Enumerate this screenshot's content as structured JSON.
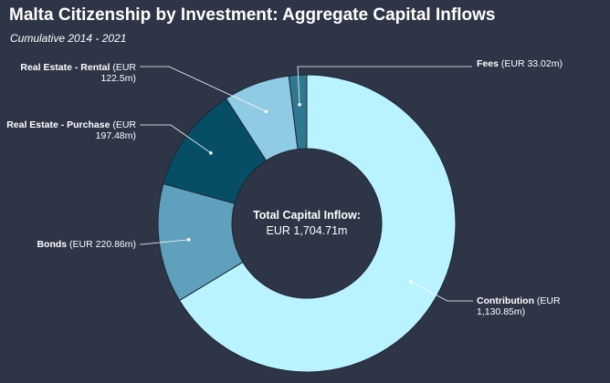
{
  "title": "Malta Citizenship by Investment: Aggregate Capital Inflows",
  "subtitle": "Cumulative 2014 - 2021",
  "chart_data": {
    "type": "pie",
    "donut": true,
    "title": "Malta Citizenship by Investment: Aggregate Capital Inflows",
    "subtitle": "Cumulative 2014 - 2021",
    "center_label": {
      "title": "Total Capital Inflow:",
      "value": "EUR 1,704.71m"
    },
    "slices": [
      {
        "name": "Contribution",
        "value": 1130.85,
        "label_lines": [
          "Contribution (EUR",
          "1,130.85m)"
        ],
        "color": "#b9f3ff"
      },
      {
        "name": "Bonds",
        "value": 220.86,
        "label_lines": [
          "Bonds (EUR 220.86m)"
        ],
        "color": "#5fa0bd"
      },
      {
        "name": "Real Estate - Purchase",
        "value": 197.48,
        "label_lines": [
          "Real Estate - Purchase (EUR",
          "197.48m)"
        ],
        "color": "#054e66"
      },
      {
        "name": "Real Estate - Rental",
        "value": 122.5,
        "label_lines": [
          "Real Estate - Rental (EUR",
          "122.5m)"
        ],
        "color": "#8fcbe5"
      },
      {
        "name": "Fees",
        "value": 33.02,
        "label_lines": [
          "Fees (EUR 33.02m)"
        ],
        "color": "#2f7891"
      }
    ]
  }
}
